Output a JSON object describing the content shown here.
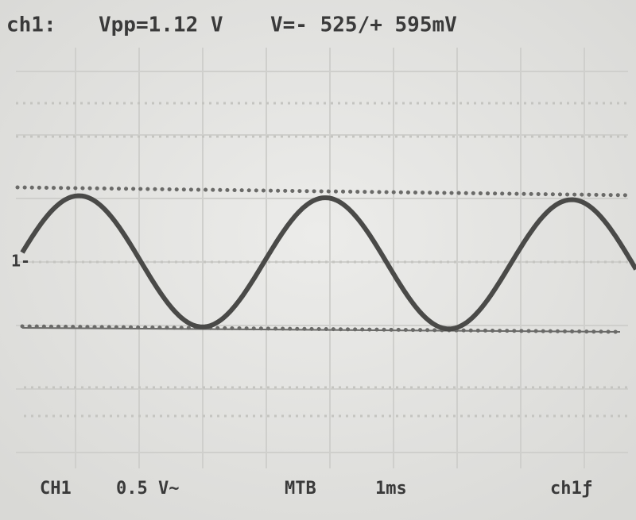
{
  "header": {
    "channel": "ch1:",
    "vpp": "Vpp=1.12 V",
    "range": "V=- 525/+ 595mV"
  },
  "ground_marker": "1-",
  "footer": {
    "channel": "CH1",
    "scale": "0.5 V~",
    "timebase_label": "MTB",
    "timebase": "1ms",
    "trigger": "ch1ƒ"
  }
}
